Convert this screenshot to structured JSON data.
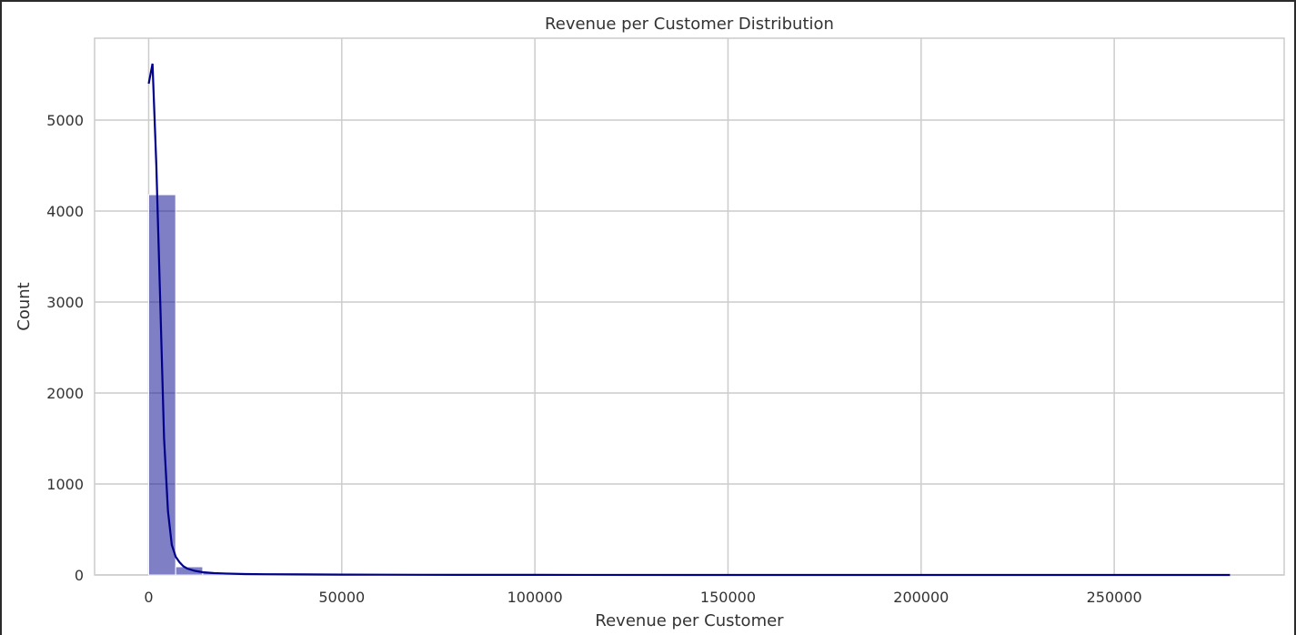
{
  "chart_data": {
    "type": "bar",
    "title": "Revenue per Customer Distribution",
    "xlabel": "Revenue per Customer",
    "ylabel": "Count",
    "xlim": [
      -14000,
      294000
    ],
    "ylim": [
      0,
      5900
    ],
    "xticks": [
      0,
      50000,
      100000,
      150000,
      200000,
      250000
    ],
    "yticks": [
      0,
      1000,
      2000,
      3000,
      4000,
      5000
    ],
    "grid": true,
    "bar_color": "#00008b",
    "bar_opacity": 0.5,
    "line_color": "#00008b",
    "bins": [
      {
        "x0": 0,
        "x1": 7000,
        "count": 4180
      },
      {
        "x0": 7000,
        "x1": 14000,
        "count": 90
      },
      {
        "x0": 14000,
        "x1": 21000,
        "count": 30
      },
      {
        "x0": 21000,
        "x1": 28000,
        "count": 15
      },
      {
        "x0": 28000,
        "x1": 35000,
        "count": 15
      },
      {
        "x0": 35000,
        "x1": 42000,
        "count": 10
      },
      {
        "x0": 42000,
        "x1": 49000,
        "count": 6
      },
      {
        "x0": 49000,
        "x1": 56000,
        "count": 6
      },
      {
        "x0": 56000,
        "x1": 63000,
        "count": 8
      },
      {
        "x0": 63000,
        "x1": 70000,
        "count": 8
      },
      {
        "x0": 70000,
        "x1": 77000,
        "count": 3
      },
      {
        "x0": 77000,
        "x1": 84000,
        "count": 3
      },
      {
        "x0": 84000,
        "x1": 91000,
        "count": 2
      },
      {
        "x0": 91000,
        "x1": 98000,
        "count": 2
      },
      {
        "x0": 98000,
        "x1": 105000,
        "count": 1
      },
      {
        "x0": 105000,
        "x1": 112000,
        "count": 1
      },
      {
        "x0": 112000,
        "x1": 119000,
        "count": 1
      },
      {
        "x0": 119000,
        "x1": 126000,
        "count": 1
      },
      {
        "x0": 126000,
        "x1": 133000,
        "count": 1
      },
      {
        "x0": 133000,
        "x1": 140000,
        "count": 1
      },
      {
        "x0": 140000,
        "x1": 147000,
        "count": 1
      },
      {
        "x0": 147000,
        "x1": 154000,
        "count": 1
      },
      {
        "x0": 154000,
        "x1": 161000,
        "count": 1
      },
      {
        "x0": 161000,
        "x1": 168000,
        "count": 1
      },
      {
        "x0": 168000,
        "x1": 175000,
        "count": 1
      },
      {
        "x0": 175000,
        "x1": 182000,
        "count": 1
      },
      {
        "x0": 182000,
        "x1": 189000,
        "count": 1
      },
      {
        "x0": 189000,
        "x1": 196000,
        "count": 1
      },
      {
        "x0": 196000,
        "x1": 203000,
        "count": 1
      },
      {
        "x0": 203000,
        "x1": 210000,
        "count": 1
      },
      {
        "x0": 210000,
        "x1": 217000,
        "count": 1
      },
      {
        "x0": 217000,
        "x1": 224000,
        "count": 1
      },
      {
        "x0": 224000,
        "x1": 231000,
        "count": 1
      },
      {
        "x0": 231000,
        "x1": 238000,
        "count": 1
      },
      {
        "x0": 238000,
        "x1": 245000,
        "count": 1
      },
      {
        "x0": 245000,
        "x1": 252000,
        "count": 1
      },
      {
        "x0": 252000,
        "x1": 259000,
        "count": 1
      },
      {
        "x0": 259000,
        "x1": 266000,
        "count": 1
      },
      {
        "x0": 266000,
        "x1": 273000,
        "count": 1
      },
      {
        "x0": 273000,
        "x1": 280000,
        "count": 2
      }
    ],
    "kde": {
      "x": [
        0,
        1000,
        2000,
        3000,
        4000,
        5000,
        6000,
        7000,
        8000,
        9000,
        10000,
        12000,
        14000,
        17000,
        20000,
        25000,
        30000,
        40000,
        50000,
        60000,
        70000,
        80000,
        100000,
        150000,
        200000,
        250000,
        280000
      ],
      "y": [
        5400,
        5620,
        4500,
        3000,
        1500,
        700,
        330,
        200,
        140,
        95,
        70,
        45,
        30,
        20,
        15,
        10,
        8,
        6,
        4,
        3,
        2,
        1,
        1,
        0,
        0,
        0,
        0
      ]
    }
  }
}
